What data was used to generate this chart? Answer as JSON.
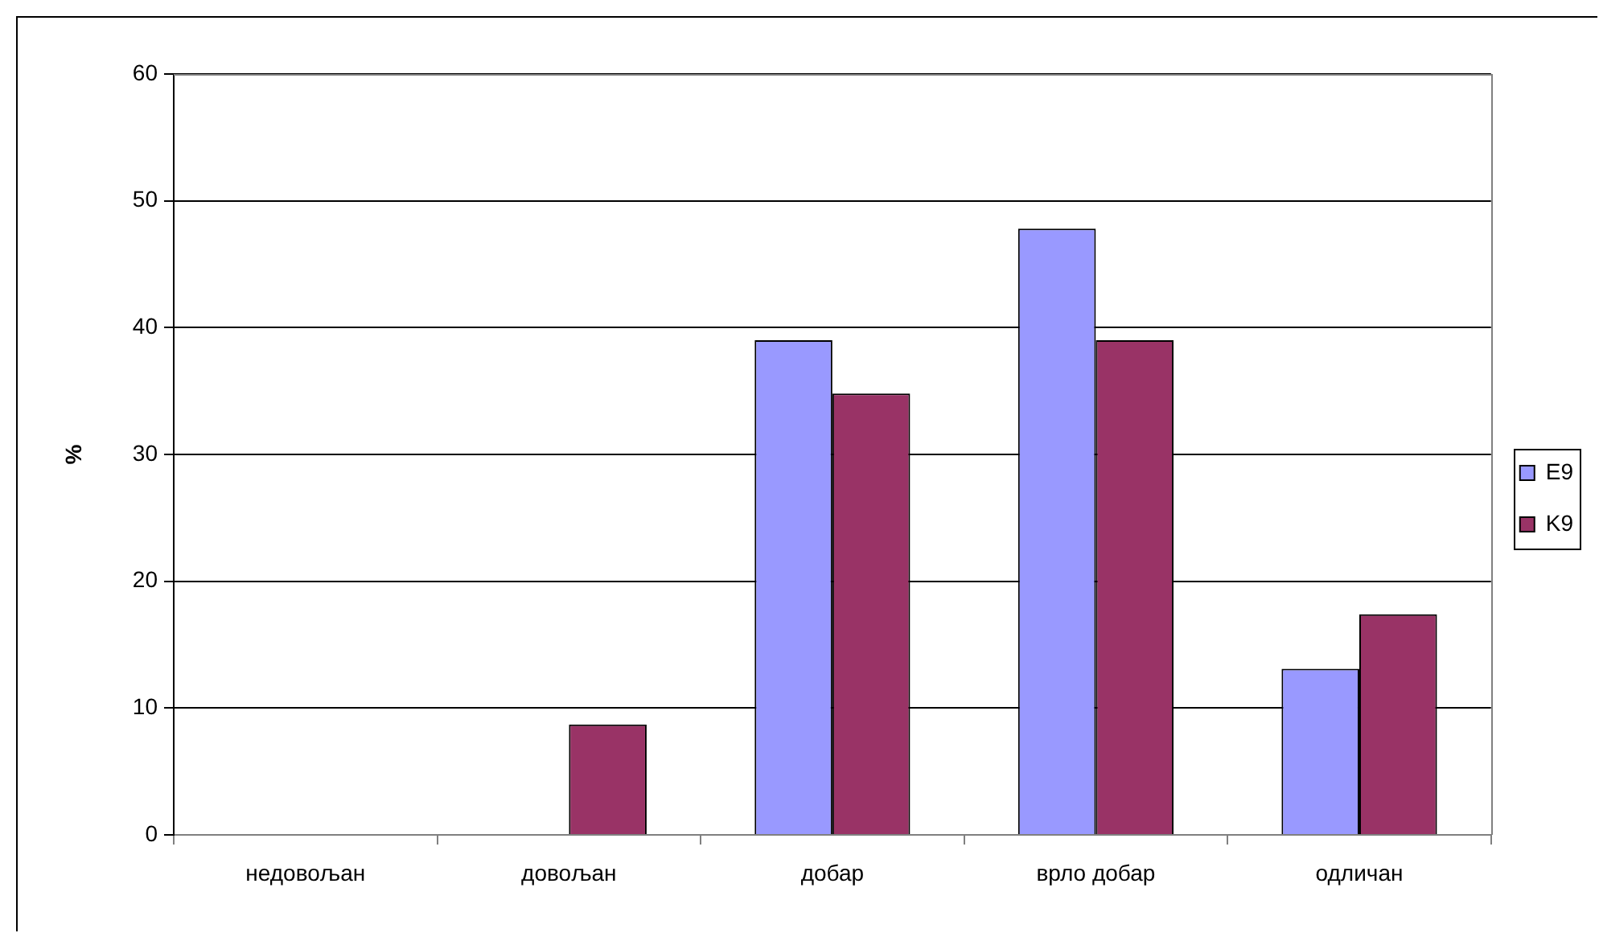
{
  "chart_data": {
    "type": "bar",
    "ylabel": "%",
    "categories": [
      "недовољан",
      "довољан",
      "добар",
      "врло добар",
      "одличан"
    ],
    "series": [
      {
        "name": "E9",
        "color": "#9999ff",
        "values": [
          0,
          0,
          39,
          47.8,
          13.1
        ]
      },
      {
        "name": "K9",
        "color": "#993366",
        "values": [
          0,
          8.7,
          34.8,
          39,
          17.4
        ]
      }
    ],
    "ylim": [
      0,
      60
    ],
    "yticks": [
      0,
      10,
      20,
      30,
      40,
      50,
      60
    ],
    "grid": "y",
    "legend": "right"
  }
}
